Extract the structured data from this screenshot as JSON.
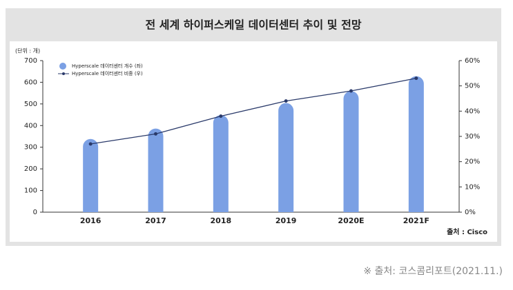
{
  "chart_data": {
    "type": "bar-line",
    "title": "전 세계 하이퍼스케일 데이터센터 추이 및 전망",
    "unit_label": "(단위 : 개)",
    "source": "출처 : Cisco",
    "categories": [
      "2016",
      "2017",
      "2018",
      "2019",
      "2020E",
      "2021F"
    ],
    "series": [
      {
        "name": "Hyperscale 데이터센터 개수 (좌)",
        "color": "#7ba0e4",
        "type": "bar",
        "axis": "y",
        "values": [
          338,
          386,
          448,
          504,
          559,
          628
        ]
      },
      {
        "name": "Hyperscale 데이터센터 비중 (우)",
        "color": "#2a3a6a",
        "type": "line",
        "axis": "y2",
        "values": [
          27,
          31,
          38,
          44,
          48,
          53
        ]
      }
    ],
    "ylim": [
      0,
      700
    ],
    "yticks": [
      0,
      100,
      200,
      300,
      400,
      500,
      600,
      700
    ],
    "y2lim": [
      0,
      60
    ],
    "y2ticks": [
      {
        "value": 0,
        "label": "0%"
      },
      {
        "value": 10,
        "label": "10%"
      },
      {
        "value": 20,
        "label": "20%"
      },
      {
        "value": 30,
        "label": "30%"
      },
      {
        "value": 40,
        "label": "40%"
      },
      {
        "value": 50,
        "label": "50%"
      },
      {
        "value": 60,
        "label": "60%"
      }
    ],
    "legend": "top-left"
  },
  "footer": "※ 출처: 코스콤리포트(2021.11.)"
}
